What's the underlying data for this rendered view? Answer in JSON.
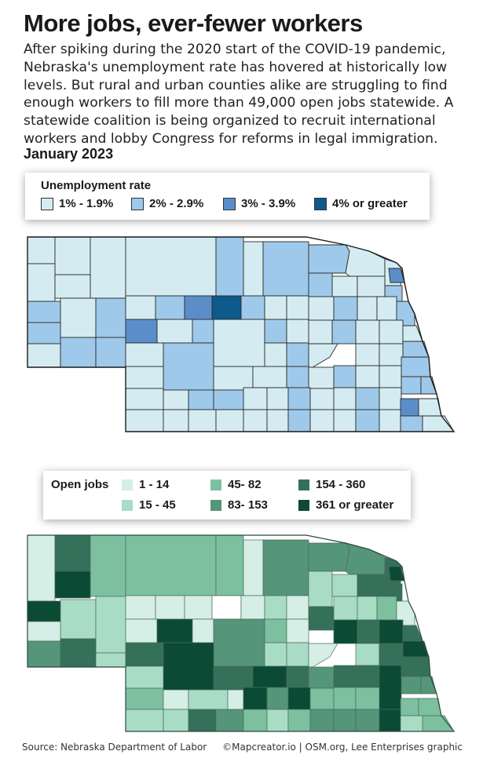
{
  "title": "More jobs, ever-fewer workers",
  "intro": "After spiking during the 2020 start of the COVID-19 pandemic, Nebraska's unemployment rate has hovered at historically low levels. But rural and urban counties alike are struggling to find enough workers to fill more than 49,000 open jobs statewide. A statewide coalition is being organized to recruit international workers and lobby Congress for reforms in legal immigration.",
  "subtitle": "January 2023",
  "legend_unemployment": {
    "title": "Unemployment rate",
    "items": [
      {
        "label": "1% - 1.9%",
        "color": "#d4ecf1"
      },
      {
        "label": "2% - 2.9%",
        "color": "#9fc9ea"
      },
      {
        "label": "3% - 3.9%",
        "color": "#5b8ec9"
      },
      {
        "label": "4% or greater",
        "color": "#0e5a8a"
      }
    ]
  },
  "legend_jobs": {
    "title": "Open jobs",
    "items": [
      {
        "label": "1 - 14",
        "color": "#d5eee6"
      },
      {
        "label": "15 - 45",
        "color": "#a9dcc4"
      },
      {
        "label": "45- 82",
        "color": "#7cc0a0"
      },
      {
        "label": "83- 153",
        "color": "#55957a"
      },
      {
        "label": "154 - 360",
        "color": "#34705a"
      },
      {
        "label": "361 or greater",
        "color": "#0b4a34"
      }
    ]
  },
  "footer_source": "Source: Nebraska Department of Labor",
  "footer_credit": "©Mapcreator.io | OSM.org, Lee Enterprises graphic"
}
